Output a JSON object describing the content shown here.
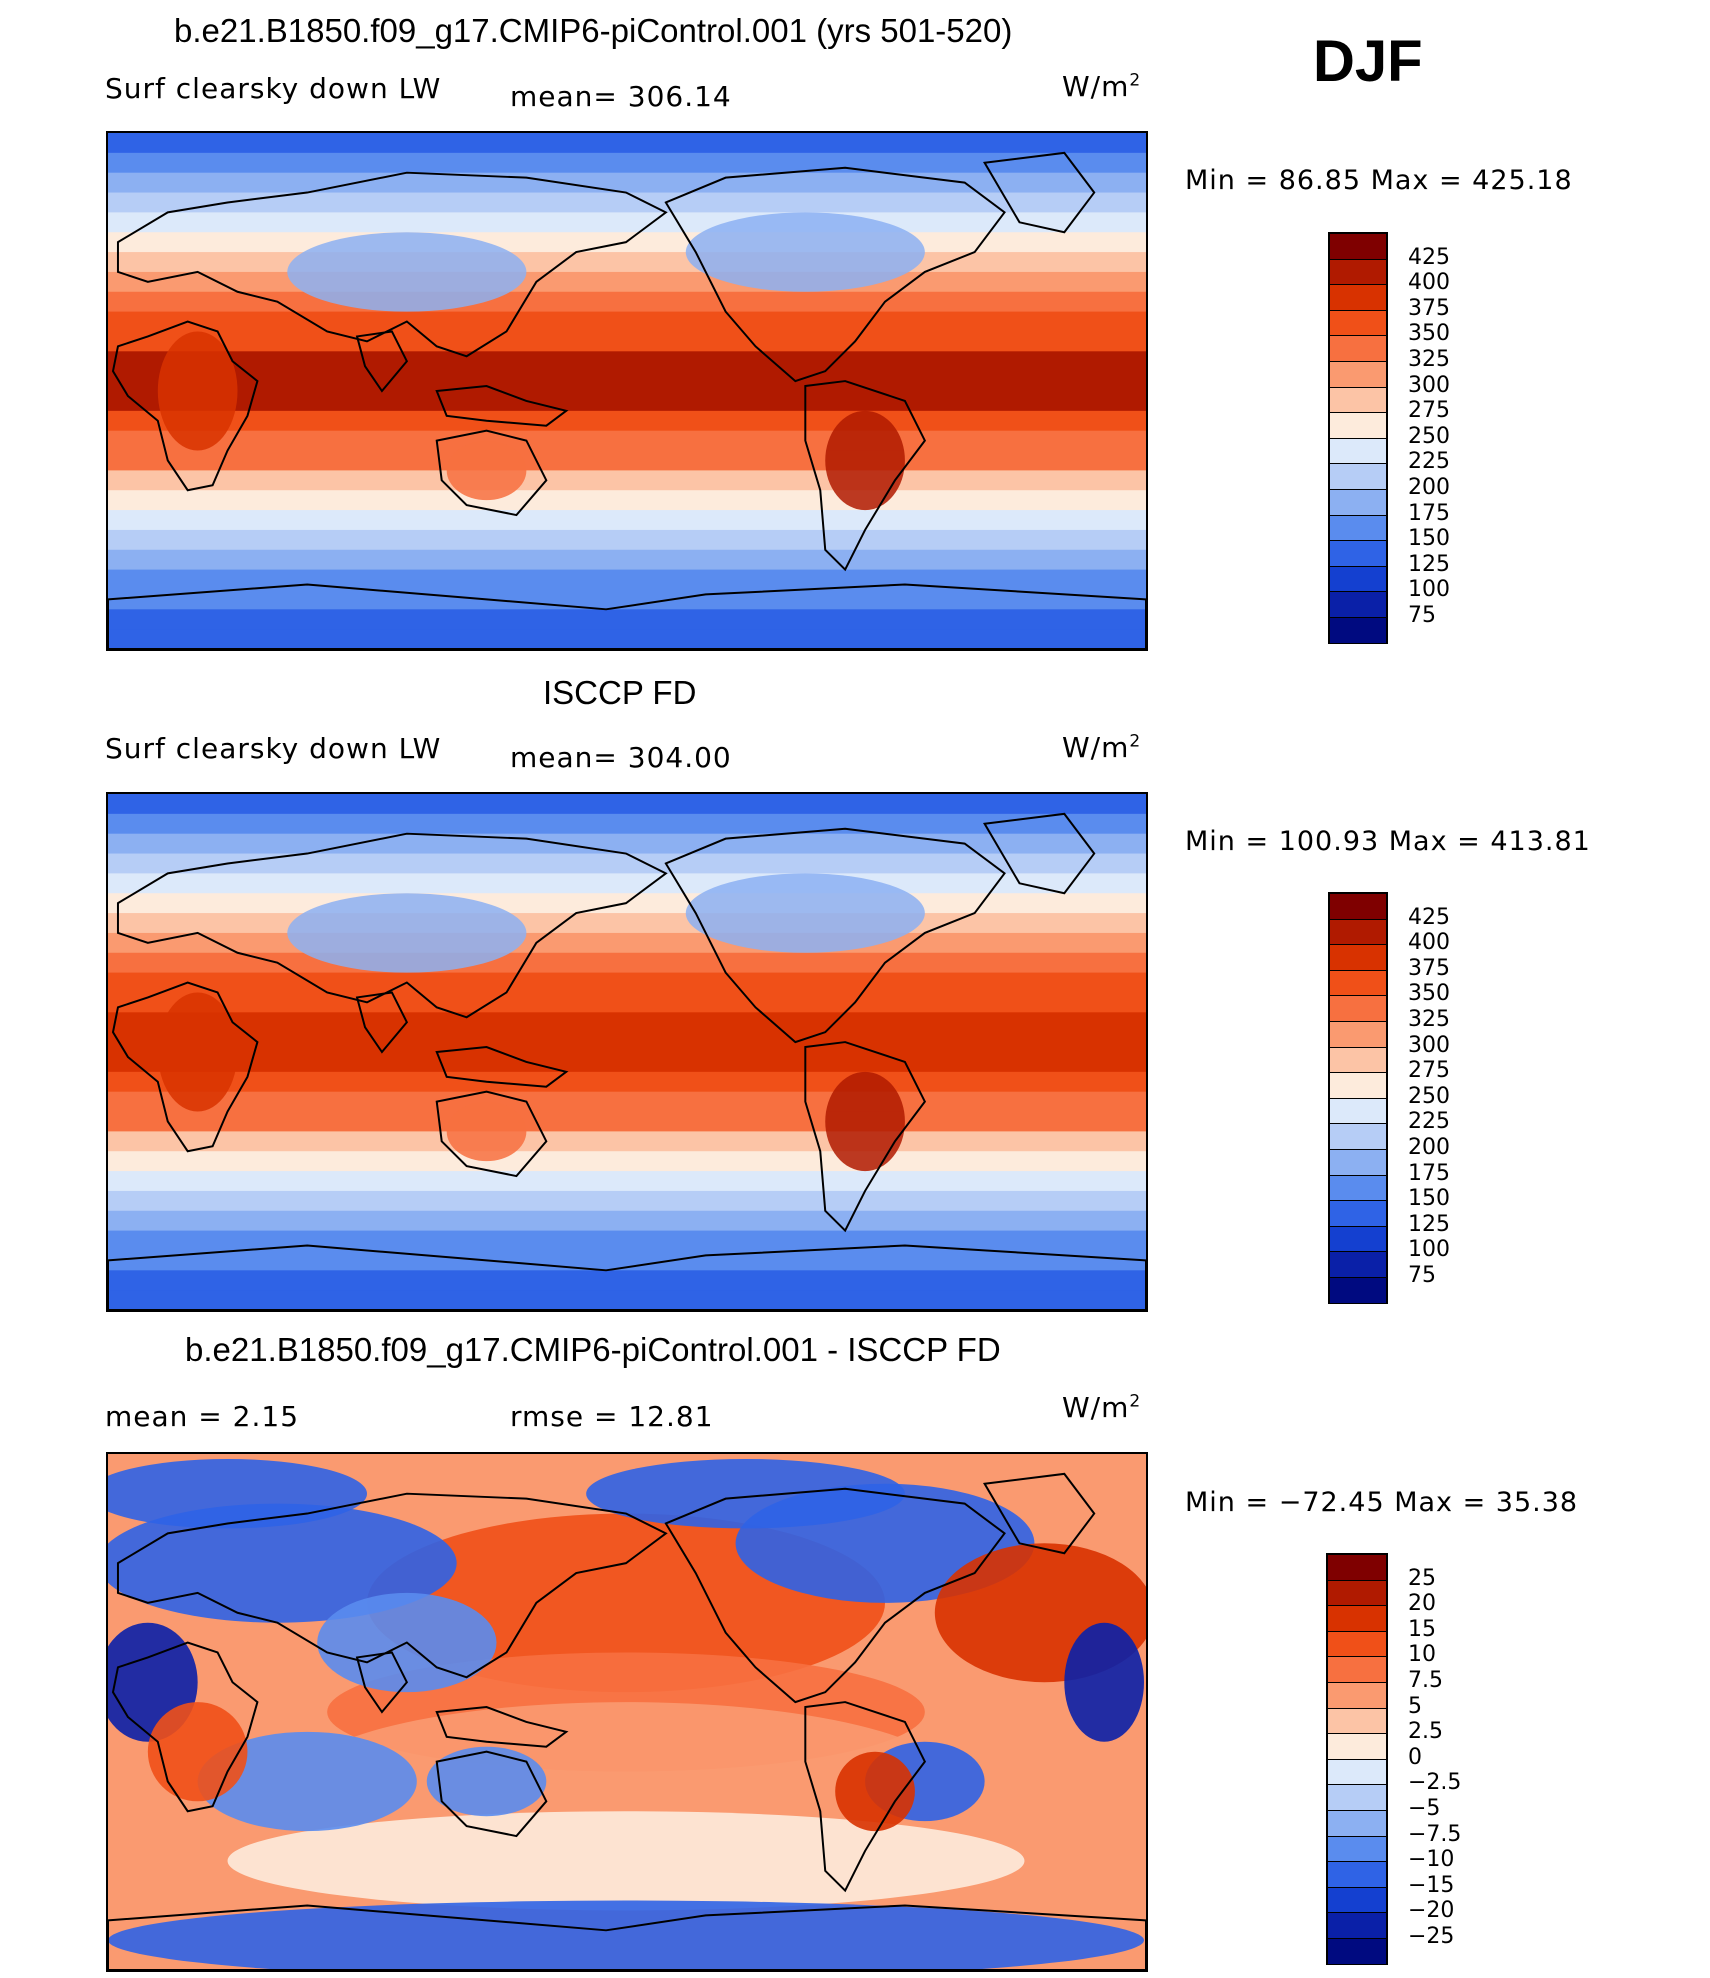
{
  "season": "DJF",
  "panels": [
    {
      "id": "model",
      "title": "b.e21.B1850.f09_g17.CMIP6-piControl.001 (yrs 501-520)",
      "variable": "Surf clearsky down LW",
      "stat1": "mean= 306.14",
      "stat2": "",
      "units_base": "W/m",
      "units_exp": "2",
      "minmax": "Min =   86.85 Max = 425.18",
      "colorbar_labels": [
        "425",
        "400",
        "375",
        "350",
        "325",
        "300",
        "275",
        "250",
        "225",
        "200",
        "175",
        "150",
        "125",
        "100",
        "75"
      ]
    },
    {
      "id": "obs",
      "title": "ISCCP FD",
      "variable": "Surf clearsky down LW",
      "stat1": "mean= 304.00",
      "stat2": "",
      "units_base": "W/m",
      "units_exp": "2",
      "minmax": "Min = 100.93 Max = 413.81",
      "colorbar_labels": [
        "425",
        "400",
        "375",
        "350",
        "325",
        "300",
        "275",
        "250",
        "225",
        "200",
        "175",
        "150",
        "125",
        "100",
        "75"
      ]
    },
    {
      "id": "diff",
      "title": "b.e21.B1850.f09_g17.CMIP6-piControl.001 - ISCCP FD",
      "variable": "mean =    2.15",
      "stat1": "rmse =    12.81",
      "stat2": "",
      "units_base": "W/m",
      "units_exp": "2",
      "minmax": "Min = −72.45 Max =   35.38",
      "colorbar_labels": [
        "25",
        "20",
        "15",
        "10",
        "7.5",
        "5",
        "2.5",
        "0",
        "−2.5",
        "−5",
        "−7.5",
        "−10",
        "−15",
        "−20",
        "−25"
      ]
    }
  ],
  "palette": [
    "#7f0000",
    "#b01a00",
    "#d83200",
    "#f05018",
    "#f77040",
    "#fa9a70",
    "#fcc4a6",
    "#fdebdc",
    "#dce9fa",
    "#b6cdf6",
    "#8cb0f2",
    "#5a8cee",
    "#2f63e6",
    "#1440d0",
    "#0a20a8",
    "#000a80"
  ]
}
